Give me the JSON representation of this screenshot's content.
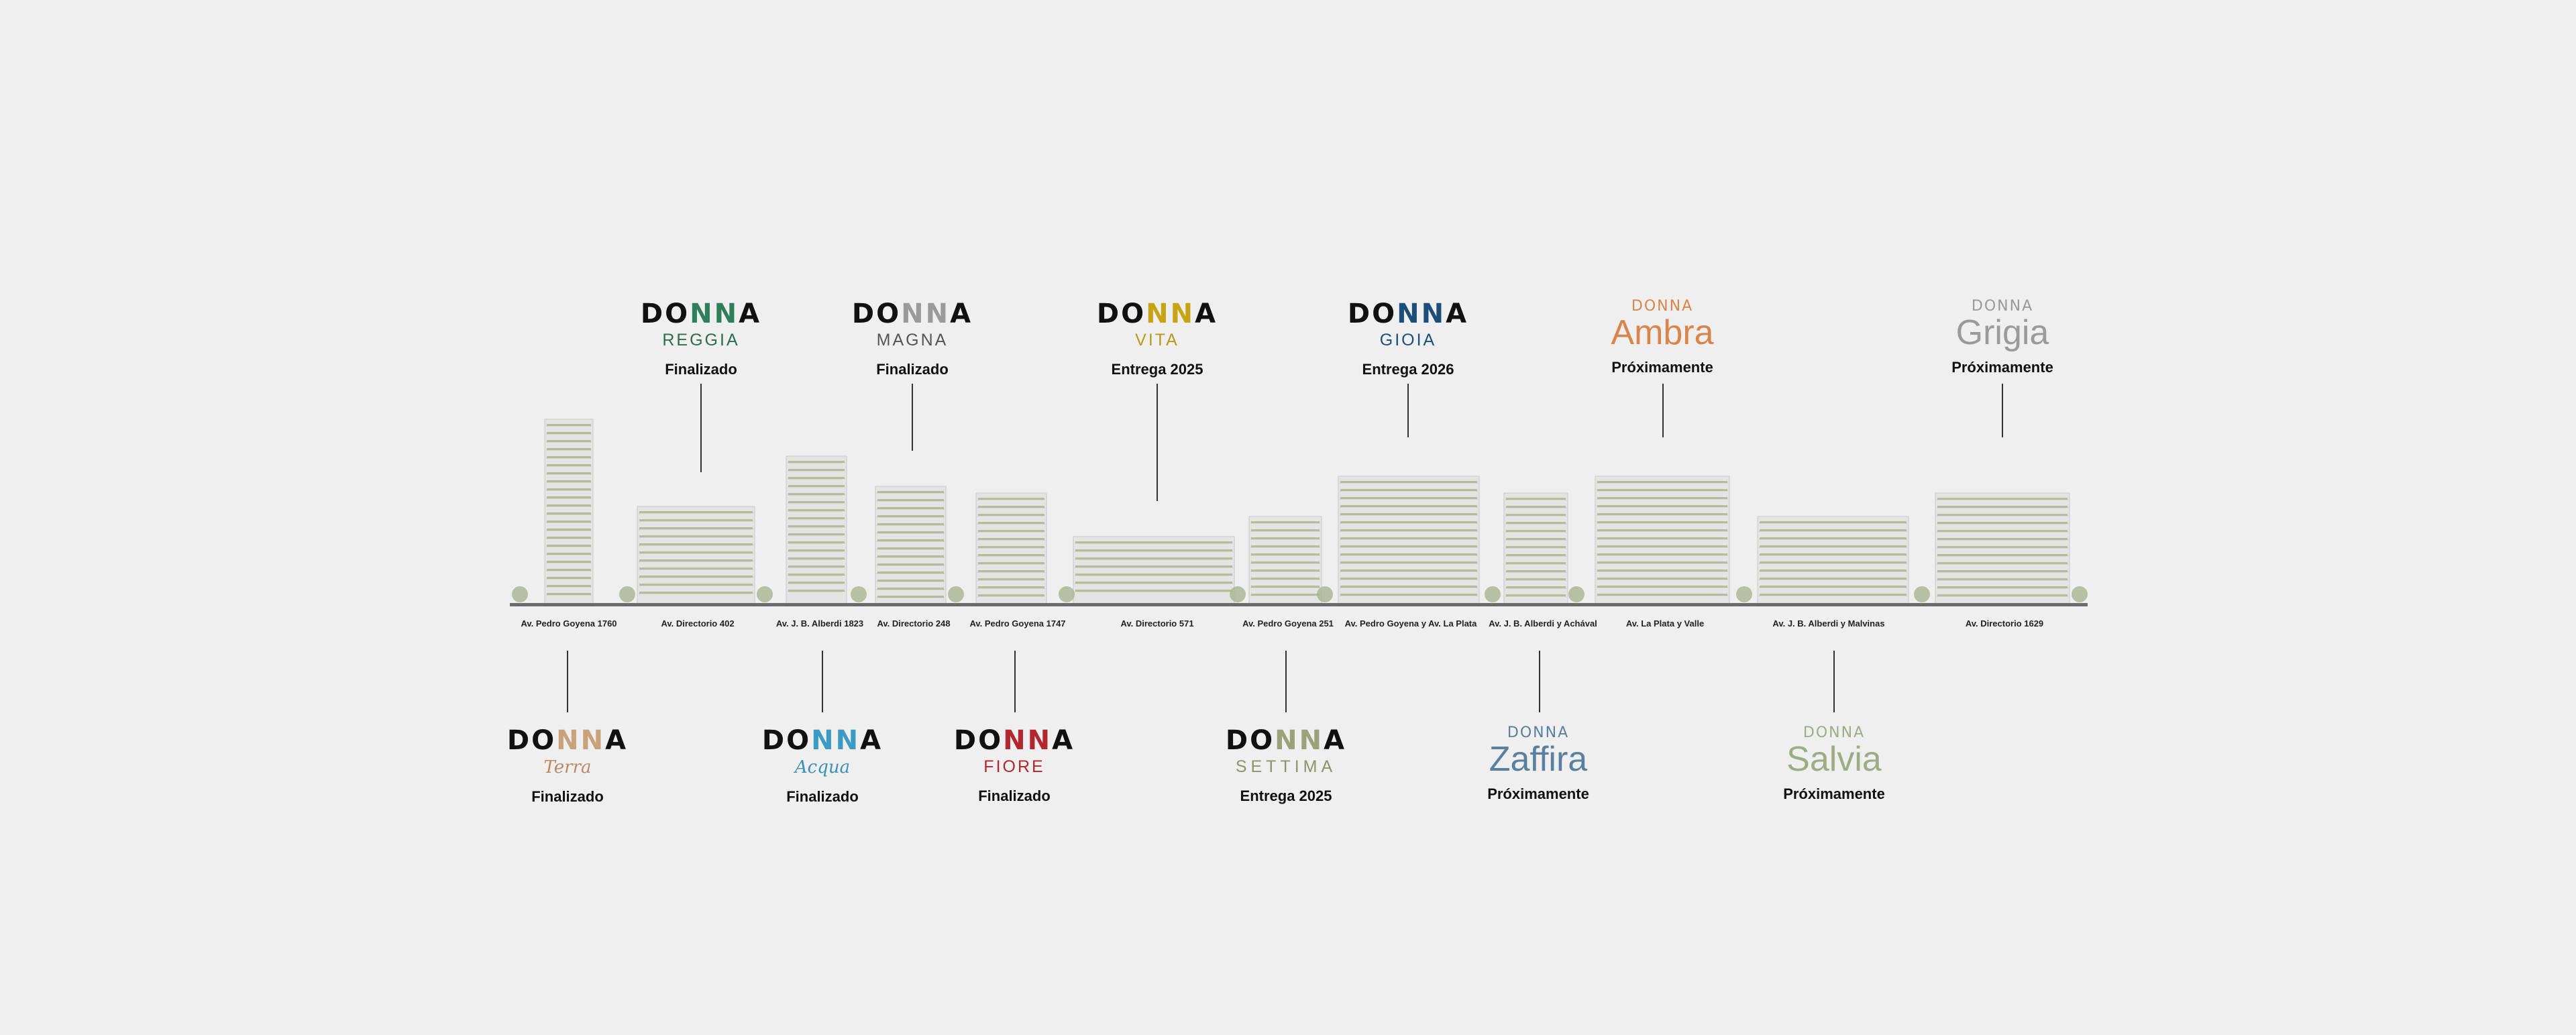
{
  "brand_word": "DONNA",
  "projects_top": [
    {
      "sub": "REGGIA",
      "status": "Finalizado",
      "nn_color": "#2e7d5b",
      "sub_color": "#2e6b4f"
    },
    {
      "sub": "MAGNA",
      "status": "Finalizado",
      "nn_color": "#9a9a9a",
      "sub_color": "#555555"
    },
    {
      "sub": "VITA",
      "status": "Entrega 2025",
      "nn_color": "#c8a415",
      "sub_color": "#b69a18"
    },
    {
      "sub": "GIOIA",
      "status": "Entrega 2026",
      "nn_color": "#1d4e7a",
      "sub_color": "#1d4e7a"
    },
    {
      "sub": "Ambra",
      "status": "Próximamente",
      "nn_color": "#d9844a",
      "sub_color": "#d9844a"
    },
    {
      "sub": "Grigia",
      "status": "Próximamente",
      "nn_color": "#9a9a9a",
      "sub_color": "#9a9a9a"
    }
  ],
  "projects_bottom": [
    {
      "sub": "Terra",
      "status": "Finalizado",
      "nn_color": "#c9a27a",
      "sub_color": "#b98a65"
    },
    {
      "sub": "Acqua",
      "status": "Finalizado",
      "nn_color": "#3c9bc4",
      "sub_color": "#3c8fb8"
    },
    {
      "sub": "FIORE",
      "status": "Finalizado",
      "nn_color": "#b3262d",
      "sub_color": "#b3262d"
    },
    {
      "sub": "SETTIMA",
      "status": "Entrega 2025",
      "nn_color": "#9ba27a",
      "sub_color": "#8d946c"
    },
    {
      "sub": "Zaffira",
      "status": "Próximamente",
      "nn_color": "#5b7f9c",
      "sub_color": "#5b7f9c"
    },
    {
      "sub": "Salvia",
      "status": "Próximamente",
      "nn_color": "#9cad85",
      "sub_color": "#9cad85"
    }
  ],
  "addresses": [
    "Av. Pedro Goyena 1760",
    "Av. Directorio 402",
    "Av. J. B. Alberdi 1823",
    "Av. Directorio 248",
    "Av. Pedro Goyena 1747",
    "Av. Directorio 571",
    "Av. Pedro Goyena 251",
    "Av. Pedro Goyena y Av. La Plata",
    "Av. J. B. Alberdi y Achával",
    "Av. La Plata y Valle",
    "Av. J. B. Alberdi y Malvinas",
    "Av. Directorio 1629"
  ],
  "colors": {
    "background": "#efefef",
    "ground_line": "#6b6b6b",
    "building": "#e4e4e4",
    "building_line": "#c9c9c9",
    "greenery": "#8fa05a"
  }
}
